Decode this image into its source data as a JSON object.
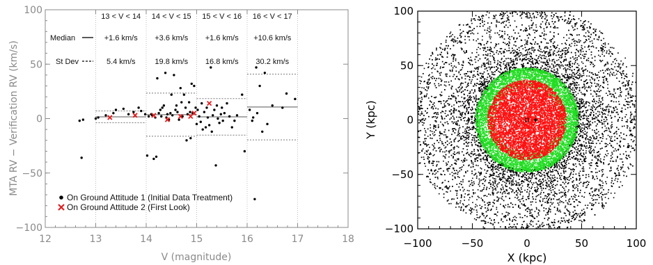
{
  "chart_data": [
    {
      "type": "scatter",
      "xlabel": "V (magnitude)",
      "ylabel": "MTA RV − Verification RV (km/s)",
      "xlim": [
        12,
        18
      ],
      "ylim": [
        -100,
        100
      ],
      "xticks": [
        "12",
        "13",
        "14",
        "15",
        "16",
        "17",
        "18"
      ],
      "yticks": [
        "−100",
        "−50",
        "0",
        "50",
        "100"
      ],
      "bins": [
        {
          "label": "13 < V < 14",
          "range": [
            13,
            14
          ],
          "median": "+1.6 km/s",
          "stdev": "5.4 km/s",
          "median_value": 1.6,
          "stdev_value": 5.4
        },
        {
          "label": "14 < V < 15",
          "range": [
            14,
            15
          ],
          "median": "+3.6 km/s",
          "stdev": "19.8 km/s",
          "median_value": 3.6,
          "stdev_value": 19.8
        },
        {
          "label": "15 < V < 16",
          "range": [
            15,
            16
          ],
          "median": "+1.6 km/s",
          "stdev": "16.8 km/s",
          "median_value": 1.6,
          "stdev_value": 16.8
        },
        {
          "label": "16 < V < 17",
          "range": [
            16,
            17
          ],
          "median": "+10.6 km/s",
          "stdev": "30.2 km/s",
          "median_value": 10.6,
          "stdev_value": 30.2
        }
      ],
      "row_labels": {
        "median": "Median",
        "stdev": "St Dev"
      },
      "series": [
        {
          "name": "On Ground Attitude 1 (Initial Data Treatment)",
          "color": "#000000",
          "marker": "dot",
          "points": [
            [
              12.68,
              -2
            ],
            [
              12.72,
              -36
            ],
            [
              12.75,
              -1
            ],
            [
              13.0,
              0
            ],
            [
              13.05,
              1
            ],
            [
              13.2,
              3
            ],
            [
              13.35,
              5
            ],
            [
              13.4,
              8
            ],
            [
              13.55,
              9
            ],
            [
              13.65,
              4
            ],
            [
              13.75,
              6
            ],
            [
              13.85,
              10
            ],
            [
              13.9,
              7
            ],
            [
              13.98,
              4
            ],
            [
              14.02,
              -34
            ],
            [
              14.05,
              2
            ],
            [
              14.1,
              4
            ],
            [
              14.12,
              3
            ],
            [
              14.15,
              -37
            ],
            [
              14.18,
              1
            ],
            [
              14.2,
              -35
            ],
            [
              14.22,
              37
            ],
            [
              14.25,
              5
            ],
            [
              14.28,
              8
            ],
            [
              14.3,
              2
            ],
            [
              14.32,
              10
            ],
            [
              14.35,
              12
            ],
            [
              14.38,
              42
            ],
            [
              14.4,
              1
            ],
            [
              14.42,
              4
            ],
            [
              14.45,
              -1
            ],
            [
              14.48,
              5
            ],
            [
              14.5,
              22
            ],
            [
              14.52,
              3
            ],
            [
              14.55,
              40
            ],
            [
              14.58,
              8
            ],
            [
              14.6,
              12
            ],
            [
              14.62,
              6
            ],
            [
              14.65,
              -1
            ],
            [
              14.68,
              28
            ],
            [
              14.7,
              15
            ],
            [
              14.72,
              2
            ],
            [
              14.75,
              22
            ],
            [
              14.78,
              10
            ],
            [
              14.8,
              -20
            ],
            [
              14.82,
              4
            ],
            [
              14.85,
              15
            ],
            [
              14.87,
              6
            ],
            [
              14.88,
              -18
            ],
            [
              14.9,
              32
            ],
            [
              14.92,
              5
            ],
            [
              14.95,
              30
            ],
            [
              14.98,
              10
            ],
            [
              15.0,
              -5
            ],
            [
              15.02,
              8
            ],
            [
              15.05,
              2
            ],
            [
              15.08,
              -3
            ],
            [
              15.1,
              14
            ],
            [
              15.12,
              -10
            ],
            [
              15.15,
              6
            ],
            [
              15.18,
              -8
            ],
            [
              15.2,
              10
            ],
            [
              15.22,
              1
            ],
            [
              15.25,
              -6
            ],
            [
              15.28,
              47
            ],
            [
              15.3,
              -12
            ],
            [
              15.32,
              3
            ],
            [
              15.35,
              8
            ],
            [
              15.38,
              -43
            ],
            [
              15.4,
              12
            ],
            [
              15.42,
              0
            ],
            [
              15.45,
              -4
            ],
            [
              15.48,
              4
            ],
            [
              15.5,
              10
            ],
            [
              15.52,
              -2
            ],
            [
              15.55,
              5
            ],
            [
              15.6,
              14
            ],
            [
              15.65,
              2
            ],
            [
              15.7,
              -8
            ],
            [
              15.75,
              -2
            ],
            [
              15.8,
              3
            ],
            [
              15.9,
              22
            ],
            [
              15.95,
              -30
            ],
            [
              16.05,
              8
            ],
            [
              16.1,
              -2
            ],
            [
              16.12,
              1
            ],
            [
              16.15,
              -74
            ],
            [
              16.18,
              47
            ],
            [
              16.2,
              5
            ],
            [
              16.25,
              30
            ],
            [
              16.3,
              -12
            ],
            [
              16.35,
              42
            ],
            [
              16.4,
              -5
            ],
            [
              16.5,
              12
            ],
            [
              16.7,
              10
            ],
            [
              16.78,
              23
            ],
            [
              16.95,
              18
            ]
          ]
        },
        {
          "name": "On Ground Attitude 2 (First Look)",
          "color": "#e02020",
          "marker": "x",
          "points": [
            [
              13.28,
              1
            ],
            [
              13.78,
              3
            ],
            [
              14.15,
              3
            ],
            [
              14.42,
              -1
            ],
            [
              14.68,
              2
            ],
            [
              14.88,
              2
            ],
            [
              14.95,
              5
            ],
            [
              15.25,
              14
            ]
          ]
        }
      ]
    },
    {
      "type": "scatter",
      "xlabel": "X (kpc)",
      "ylabel": "Y (kpc)",
      "xlim": [
        -100,
        100
      ],
      "ylim": [
        -100,
        100
      ],
      "xticks": [
        "−100",
        "−50",
        "0",
        "50",
        "100"
      ],
      "yticks": [
        "−100",
        "−50",
        "0",
        "50",
        "100"
      ],
      "series": [
        {
          "color": "#000000",
          "radius_range": [
            45,
            100
          ],
          "count": 9000
        },
        {
          "color": "#22dd22",
          "radius_range": [
            28,
            47
          ],
          "count": 5200
        },
        {
          "color": "#ff1010",
          "radius_range": [
            0,
            36
          ],
          "count": 9000
        }
      ],
      "markers": [
        {
          "shape": "square",
          "x": 0,
          "y": 0
        },
        {
          "shape": "star",
          "x": 8,
          "y": 0
        }
      ]
    }
  ]
}
